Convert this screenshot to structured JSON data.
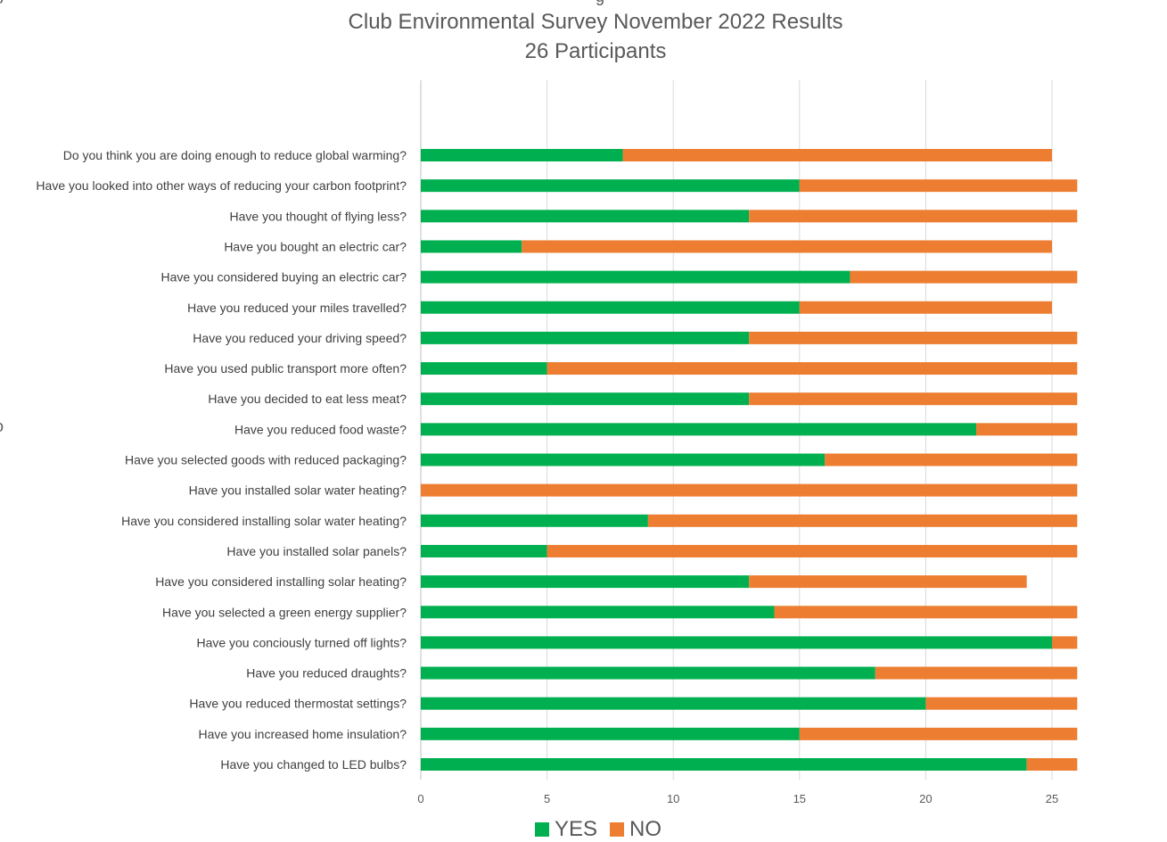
{
  "chart_data": {
    "type": "bar",
    "orientation": "horizontal",
    "stacked": true,
    "title": "Club Environmental Survey November 2022 Results",
    "subtitle": "26 Participants",
    "categories": [
      "Do you think you are doing enough to reduce global warming?",
      "Have you looked into other ways of reducing your carbon footprint?",
      "Have you thought of flying less?",
      "Have you bought an electric car?",
      "Have you considered buying an electric car?",
      "Have you reduced your miles travelled?",
      "Have you reduced your driving speed?",
      "Have you used public transport more often?",
      "Have you decided to eat less meat?",
      "Have you reduced food waste?",
      "Have you selected goods with reduced packaging?",
      "Have you installed solar water heating?",
      "Have you considered installing solar water heating?",
      "Have you installed solar panels?",
      "Have you considered installing solar heating?",
      "Have you selected a green energy supplier?",
      "Have you conciously turned off lights?",
      "Have you reduced draughts?",
      "Have you reduced thermostat settings?",
      "Have you increased home insulation?",
      "Have you changed to LED bulbs?"
    ],
    "series": [
      {
        "name": "YES",
        "color": "#00B050",
        "values": [
          8,
          15,
          13,
          4,
          17,
          15,
          13,
          5,
          13,
          22,
          16,
          0,
          9,
          5,
          13,
          14,
          25,
          18,
          20,
          15,
          24
        ]
      },
      {
        "name": "NO",
        "color": "#ED7D31",
        "values": [
          17,
          11,
          13,
          21,
          9,
          10,
          13,
          21,
          13,
          4,
          10,
          26,
          17,
          21,
          11,
          12,
          1,
          8,
          6,
          11,
          2
        ]
      }
    ],
    "xlim": [
      0,
      26
    ],
    "xticks": [
      "0",
      "5",
      "10",
      "15",
      "20",
      "25"
    ],
    "grid": true,
    "legend_position": "bottom",
    "edge_glyphs": [
      "g",
      "o",
      "o"
    ]
  }
}
